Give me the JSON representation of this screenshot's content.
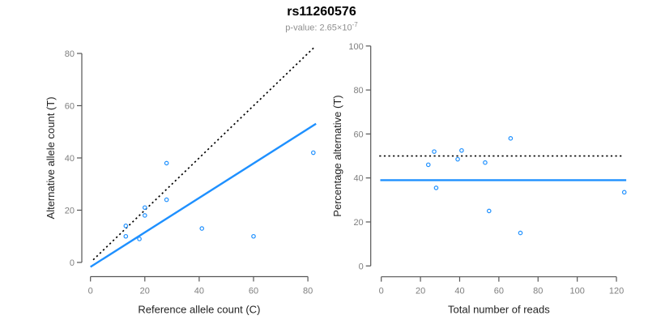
{
  "title": "rs11260576",
  "subtitle": {
    "label": "p-value:",
    "mantissa": "2.65×10",
    "exponent": "-7"
  },
  "colors": {
    "point_blue": "#1E90FF",
    "fit_line_blue": "#1E90FF",
    "dotted_line_black": "#000000",
    "axis_line": "#555555",
    "tick_label_gray": "#7f7f7f",
    "axis_label_dark": "#222222",
    "subtitle_gray": "#8f8f8f",
    "background": "#ffffff"
  },
  "chart_data": [
    {
      "type": "scatter",
      "panel": "left",
      "xlabel": "Reference allele count (C)",
      "ylabel": "Alternative allele count (T)",
      "xticks": [
        0,
        20,
        40,
        60,
        80
      ],
      "yticks": [
        0,
        20,
        40,
        60,
        80
      ],
      "xlim": [
        0,
        83
      ],
      "ylim": [
        0,
        83
      ],
      "grid": false,
      "points": [
        [
          13,
          10
        ],
        [
          13,
          14
        ],
        [
          18,
          9
        ],
        [
          20,
          18
        ],
        [
          20,
          21
        ],
        [
          28,
          24
        ],
        [
          28,
          38
        ],
        [
          41,
          13
        ],
        [
          60,
          10
        ],
        [
          82,
          42
        ]
      ],
      "lines": [
        {
          "name": "expected-50pct-line",
          "style": "dotted",
          "slope": 1,
          "intercept": 0,
          "x_range": [
            1,
            82.5
          ]
        },
        {
          "name": "fitted-proportion-line",
          "style": "solid",
          "slope": 0.66,
          "intercept": -1.7,
          "x_range": [
            0,
            83
          ]
        }
      ]
    },
    {
      "type": "scatter",
      "panel": "right",
      "xlabel": "Total number of reads",
      "ylabel": "Percentage alternative (T)",
      "xticks": [
        0,
        20,
        40,
        60,
        80,
        100,
        120
      ],
      "yticks": [
        0,
        20,
        40,
        60,
        80,
        100
      ],
      "xlim": [
        0,
        125
      ],
      "ylim": [
        0,
        100
      ],
      "grid": false,
      "points": [
        [
          24,
          46
        ],
        [
          27,
          52
        ],
        [
          28,
          35.5
        ],
        [
          39,
          48.5
        ],
        [
          41,
          52.5
        ],
        [
          53,
          47
        ],
        [
          55,
          25
        ],
        [
          66,
          58
        ],
        [
          71,
          15
        ],
        [
          124,
          33.5
        ]
      ],
      "lines": [
        {
          "name": "expected-50pct-line",
          "style": "dotted",
          "y": 50,
          "x_range": [
            -1,
            123
          ]
        },
        {
          "name": "observed-mean-line",
          "style": "solid",
          "y": 39,
          "x_range": [
            -0.5,
            125
          ]
        }
      ]
    }
  ]
}
